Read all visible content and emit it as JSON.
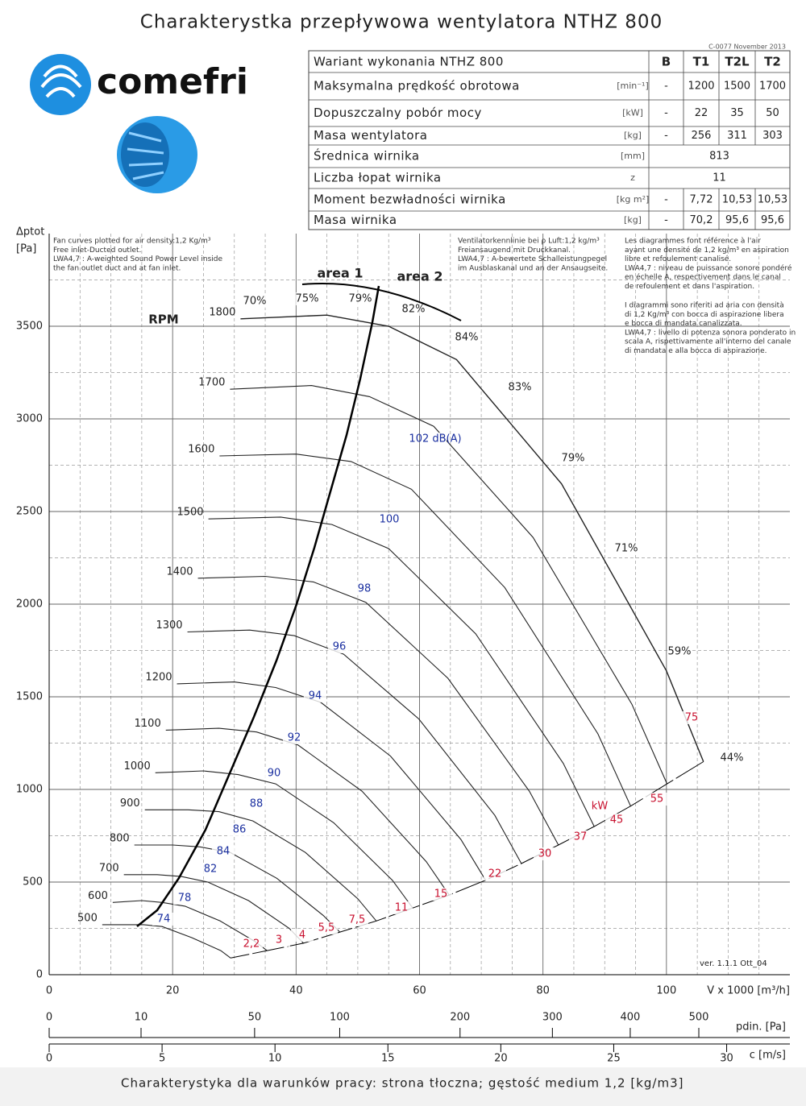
{
  "title": "Charakterystka przepływowa wentylatora NTHZ 800",
  "doc_code": "C-0077 November 2013",
  "logo": "comefri",
  "table": {
    "header": [
      "Wariant wykonania NTHZ 800",
      "B",
      "T1",
      "T2L",
      "T2"
    ],
    "rows": [
      [
        "Maksymalna prędkość obrotowa",
        "[min⁻¹]",
        "-",
        "1200",
        "1500",
        "1700"
      ],
      [
        "Dopuszczalny pobór mocy",
        "[kW]",
        "-",
        "22",
        "35",
        "50"
      ],
      [
        "Masa wentylatora",
        "[kg]",
        "-",
        "256",
        "311",
        "303"
      ],
      [
        "Średnica wirnika",
        "[mm]",
        "813"
      ],
      [
        "Liczba łopat wirnika",
        "z",
        "11"
      ],
      [
        "Moment bezwładności wirnika",
        "[kg m²]",
        "-",
        "7,72",
        "10,53",
        "10,53"
      ],
      [
        "Masa wirnika",
        "[kg]",
        "-",
        "70,2",
        "95,6",
        "95,6"
      ]
    ]
  },
  "chart_data": {
    "type": "line",
    "ylabel": [
      "Δptot",
      "[Pa]"
    ],
    "xlabel": "V x 1000 [m³/h]",
    "xlim": [
      0,
      120
    ],
    "xticks": [
      0,
      20,
      40,
      60,
      80,
      100
    ],
    "xgrid": [
      5,
      10,
      15,
      25,
      30,
      35,
      45,
      50,
      55,
      65,
      70,
      75,
      85,
      90,
      95,
      105,
      110,
      115
    ],
    "ylim": [
      0,
      4000
    ],
    "yticks": [
      0,
      500,
      1000,
      1500,
      2000,
      2500,
      3000,
      3500
    ],
    "ygrid": [
      250,
      750,
      1250,
      1750,
      2250,
      2750,
      3250,
      3750
    ],
    "speed_label": "RPM",
    "color": "#222222",
    "series": [
      {
        "name": "1800",
        "x": [
          31,
          45,
          55,
          66,
          83,
          100,
          106
        ],
        "values": [
          3540,
          3560,
          3500,
          3320,
          2650,
          1640,
          1150
        ]
      },
      {
        "name": "1700",
        "x": [
          29.3,
          42.5,
          51.9,
          62.3,
          78.4,
          94.4,
          100.1
        ],
        "values": [
          3160,
          3180,
          3120,
          2960,
          2360,
          1460,
          1030
        ]
      },
      {
        "name": "1600",
        "x": [
          27.6,
          40,
          48.9,
          58.7,
          73.8,
          88.9,
          94.2
        ],
        "values": [
          2800,
          2810,
          2770,
          2620,
          2090,
          1300,
          910
        ]
      },
      {
        "name": "1500",
        "x": [
          25.8,
          37.5,
          45.8,
          55,
          69.1,
          83.3,
          88.3
        ],
        "values": [
          2460,
          2470,
          2430,
          2300,
          1840,
          1140,
          800
        ]
      },
      {
        "name": "1400",
        "x": [
          24.1,
          35,
          42.8,
          51.3,
          64.6,
          77.8,
          82.5
        ],
        "values": [
          2140,
          2150,
          2120,
          2010,
          1600,
          990,
          700
        ]
      },
      {
        "name": "1300",
        "x": [
          22.4,
          32.5,
          39.7,
          47.7,
          59.9,
          72.2,
          76.5
        ],
        "values": [
          1850,
          1860,
          1830,
          1730,
          1380,
          860,
          600
        ]
      },
      {
        "name": "1200",
        "x": [
          20.7,
          30,
          36.7,
          44,
          55.3,
          66.7,
          70.7
        ],
        "values": [
          1570,
          1580,
          1550,
          1470,
          1180,
          730,
          510
        ]
      },
      {
        "name": "1100",
        "x": [
          18.9,
          27.5,
          33.6,
          40.3,
          50.7,
          61.1,
          64.8
        ],
        "values": [
          1320,
          1330,
          1310,
          1240,
          990,
          610,
          430
        ]
      },
      {
        "name": "1000",
        "x": [
          17.2,
          25,
          30.6,
          36.7,
          46.1,
          55.6,
          58.9
        ],
        "values": [
          1090,
          1100,
          1080,
          1030,
          820,
          510,
          360
        ]
      },
      {
        "name": "900",
        "x": [
          15.5,
          22.5,
          27.5,
          33,
          41.5,
          50,
          53
        ],
        "values": [
          890,
          890,
          880,
          830,
          660,
          410,
          290
        ]
      },
      {
        "name": "800",
        "x": [
          13.8,
          20,
          24.4,
          29.3,
          36.9,
          44.4,
          47.1
        ],
        "values": [
          700,
          700,
          690,
          660,
          520,
          320,
          230
        ]
      },
      {
        "name": "700",
        "x": [
          12.1,
          17.5,
          21.4,
          25.7,
          32.3,
          38.9,
          41.2
        ],
        "values": [
          540,
          540,
          530,
          500,
          400,
          250,
          170
        ]
      },
      {
        "name": "600",
        "x": [
          10.3,
          15,
          18.3,
          22,
          27.7,
          33.3,
          35.3
        ],
        "values": [
          390,
          400,
          390,
          370,
          290,
          180,
          130
        ]
      },
      {
        "name": "500",
        "x": [
          8.6,
          12.5,
          15.3,
          18.3,
          23.1,
          27.8,
          29.4
        ],
        "values": [
          270,
          270,
          270,
          260,
          200,
          130,
          90
        ]
      }
    ],
    "area_labels": [
      "area 1",
      "area 2"
    ],
    "efficiency_labels": [
      "70%",
      "75%",
      "79%",
      "82%",
      "84%",
      "83%",
      "79%",
      "71%",
      "59%",
      "44%"
    ],
    "noise_labels": [
      "102 dB(A)",
      "100",
      "98",
      "96",
      "94",
      "92",
      "90",
      "88",
      "86",
      "84",
      "82",
      "78",
      "74"
    ],
    "power_labels": [
      "kW",
      "75",
      "55",
      "45",
      "37",
      "30",
      "22",
      "15",
      "11",
      "7,5",
      "5,5",
      "4",
      "3",
      "2,2"
    ],
    "notes_en": [
      "Fan curves plotted for air density:1,2 Kg/m³",
      "Free inlet-Ducted outlet.",
      "LWA4,7 : A-weighted Sound Power Level inside",
      "the fan outlet duct and at fan inlet."
    ],
    "notes_de": [
      "Ventilatorkennlinie bei ρ Luft:1,2 kg/m³",
      "Freiansaugend mit Druckkanal.",
      "LWA4,7 : A-bewertete Schalleistungpegel",
      "im Ausblaskanal und an der Ansaugseite."
    ],
    "notes_fr": [
      "Les diagrammes font référence à l'air",
      "ayant une densité de 1,2 kg/m³ en aspiration",
      "libre et refoulement canalisé.",
      "LWA4,7 : niveau de puissance sonore pondéré",
      "en échelle A, respectivement dans le canal",
      "de refoulement et dans l'aspiration."
    ],
    "notes_it": [
      "I diagrammi sono riferiti ad aria con densità",
      "di 1,2 Kg/m³ con bocca di aspirazione libera",
      "e bocca di mandata canalizzata.",
      "LWA4,7 : livello di potenza sonora ponderato in",
      "scala A, rispettivamente all'interno del canale",
      "di mandata e alla bocca di aspirazione."
    ],
    "version": "ver. 1.1.1 Ott_04",
    "pdin_axis": {
      "label": "pdin. [Pa]",
      "scale": "sqrt",
      "lim": [
        0,
        650
      ],
      "ticks": [
        0,
        10,
        50,
        100,
        200,
        300,
        400,
        500
      ]
    },
    "c_axis": {
      "label": "c [m/s]",
      "lim": [
        0,
        32.8
      ],
      "ticks": [
        0,
        5,
        10,
        15,
        20,
        25,
        30
      ]
    }
  },
  "footer": "Charakterystyka dla warunków pracy: strona tłoczna; gęstość medium 1,2 [kg/m3]"
}
